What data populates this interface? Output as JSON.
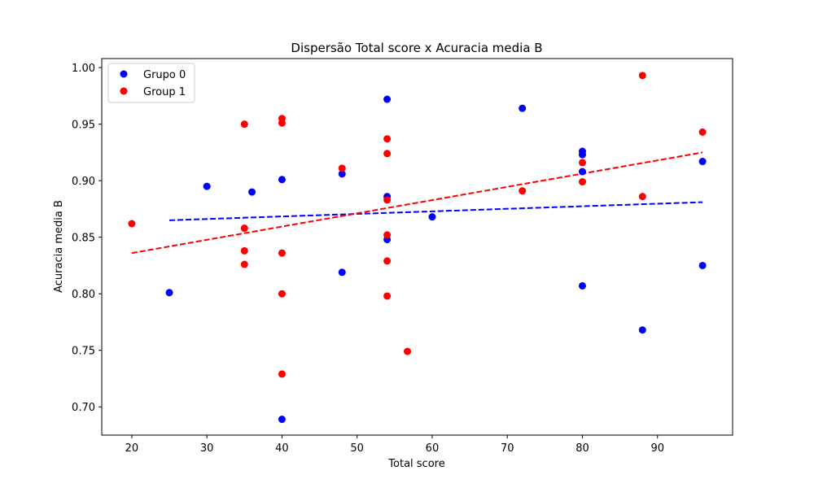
{
  "chart_data": {
    "type": "scatter",
    "title": "Dispersão Total score x Acuracia media B",
    "xlabel": "Total score",
    "ylabel": "Acuracia media B",
    "xlim": [
      16,
      100
    ],
    "ylim": [
      0.675,
      1.008
    ],
    "xticks": [
      20,
      30,
      40,
      50,
      60,
      70,
      80,
      90
    ],
    "yticks": [
      0.7,
      0.75,
      0.8,
      0.85,
      0.9,
      0.95,
      1.0
    ],
    "grid": false,
    "legend_position": "top-left",
    "series": [
      {
        "name": "Grupo 0",
        "color": "#0000ff",
        "points": [
          [
            25,
            0.801
          ],
          [
            30,
            0.895
          ],
          [
            36,
            0.89
          ],
          [
            40,
            0.901
          ],
          [
            40,
            0.689
          ],
          [
            48,
            0.906
          ],
          [
            48,
            0.819
          ],
          [
            54,
            0.972
          ],
          [
            54,
            0.886
          ],
          [
            54,
            0.848
          ],
          [
            60,
            0.868
          ],
          [
            72,
            0.964
          ],
          [
            80,
            0.926
          ],
          [
            80,
            0.923
          ],
          [
            80,
            0.908
          ],
          [
            80,
            0.807
          ],
          [
            88,
            0.768
          ],
          [
            96,
            0.917
          ],
          [
            96,
            0.825
          ]
        ],
        "trend": [
          [
            25,
            0.865
          ],
          [
            96,
            0.881
          ]
        ]
      },
      {
        "name": "Group 1",
        "color": "#ff0000",
        "points": [
          [
            20,
            0.862
          ],
          [
            35,
            0.95
          ],
          [
            35,
            0.858
          ],
          [
            35,
            0.838
          ],
          [
            35,
            0.826
          ],
          [
            40,
            0.955
          ],
          [
            40,
            0.951
          ],
          [
            40,
            0.836
          ],
          [
            40,
            0.8
          ],
          [
            40,
            0.729
          ],
          [
            48,
            0.911
          ],
          [
            54,
            0.937
          ],
          [
            54,
            0.924
          ],
          [
            54,
            0.883
          ],
          [
            54,
            0.852
          ],
          [
            54,
            0.829
          ],
          [
            54,
            0.798
          ],
          [
            56.7,
            0.749
          ],
          [
            72,
            0.891
          ],
          [
            80,
            0.916
          ],
          [
            80,
            0.899
          ],
          [
            88,
            0.993
          ],
          [
            88,
            0.886
          ],
          [
            96,
            0.943
          ]
        ],
        "trend": [
          [
            20,
            0.836
          ],
          [
            96,
            0.925
          ]
        ]
      }
    ]
  }
}
